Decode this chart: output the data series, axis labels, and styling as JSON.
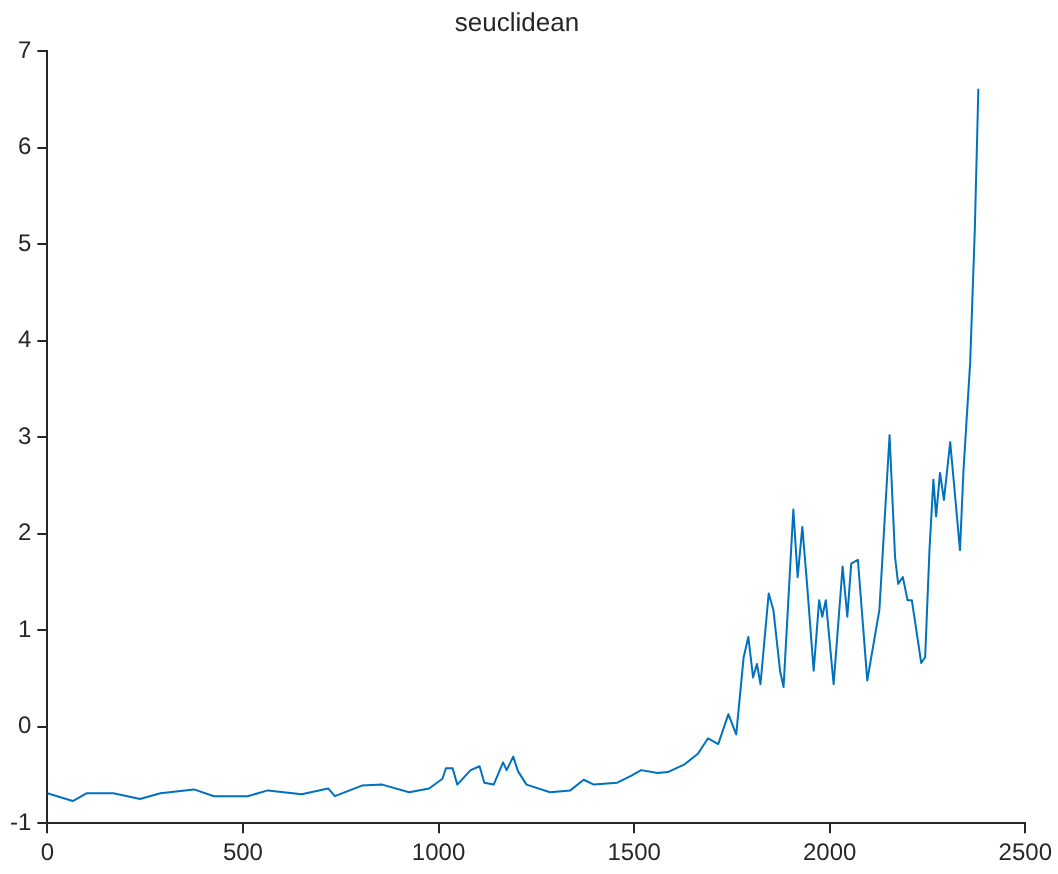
{
  "chart_data": {
    "type": "line",
    "title": "seuclidean",
    "x": [
      0,
      65,
      100,
      169,
      237,
      289,
      375,
      426,
      512,
      564,
      650,
      718,
      735,
      804,
      856,
      925,
      976,
      1010,
      1019,
      1036,
      1048,
      1082,
      1105,
      1117,
      1141,
      1165,
      1174,
      1191,
      1203,
      1225,
      1285,
      1337,
      1371,
      1397,
      1457,
      1492,
      1518,
      1560,
      1586,
      1629,
      1663,
      1689,
      1715,
      1741,
      1761,
      1780,
      1792,
      1804,
      1814,
      1823,
      1844,
      1856,
      1873,
      1882,
      1907,
      1918,
      1930,
      1942,
      1959,
      1973,
      1981,
      1990,
      2010,
      2033,
      2045,
      2055,
      2072,
      2096,
      2127,
      2153,
      2167,
      2175,
      2187,
      2199,
      2210,
      2234,
      2244,
      2255,
      2265,
      2272,
      2282,
      2292,
      2308,
      2333,
      2342,
      2359,
      2371,
      2380
    ],
    "series": [
      {
        "color": "#0072bd",
        "values": [
          -0.69,
          -0.77,
          -0.69,
          -0.69,
          -0.75,
          -0.69,
          -0.65,
          -0.72,
          -0.72,
          -0.66,
          -0.7,
          -0.64,
          -0.72,
          -0.61,
          -0.6,
          -0.68,
          -0.64,
          -0.54,
          -0.43,
          -0.43,
          -0.6,
          -0.45,
          -0.41,
          -0.58,
          -0.6,
          -0.37,
          -0.45,
          -0.31,
          -0.46,
          -0.6,
          -0.68,
          -0.66,
          -0.55,
          -0.6,
          -0.58,
          -0.51,
          -0.45,
          -0.48,
          -0.47,
          -0.39,
          -0.28,
          -0.12,
          -0.18,
          0.13,
          -0.08,
          0.72,
          0.93,
          0.51,
          0.65,
          0.44,
          1.38,
          1.21,
          0.58,
          0.41,
          2.25,
          1.55,
          2.07,
          1.48,
          0.58,
          1.31,
          1.14,
          1.31,
          0.44,
          1.66,
          1.14,
          1.69,
          1.73,
          0.48,
          1.21,
          3.02,
          1.76,
          1.48,
          1.55,
          1.31,
          1.31,
          0.66,
          0.72,
          1.83,
          2.56,
          2.18,
          2.63,
          2.35,
          2.95,
          1.83,
          2.66,
          3.77,
          5.16,
          6.61
        ]
      }
    ],
    "xlim": [
      0,
      2500
    ],
    "xticks": [
      0,
      500,
      1000,
      1500,
      2000,
      2500
    ],
    "ylim": [
      -1,
      7
    ],
    "yticks": [
      -1,
      0,
      1,
      2,
      3,
      4,
      5,
      6,
      7
    ],
    "grid": false,
    "legend": false,
    "marker": "none",
    "line_style": "solid"
  }
}
